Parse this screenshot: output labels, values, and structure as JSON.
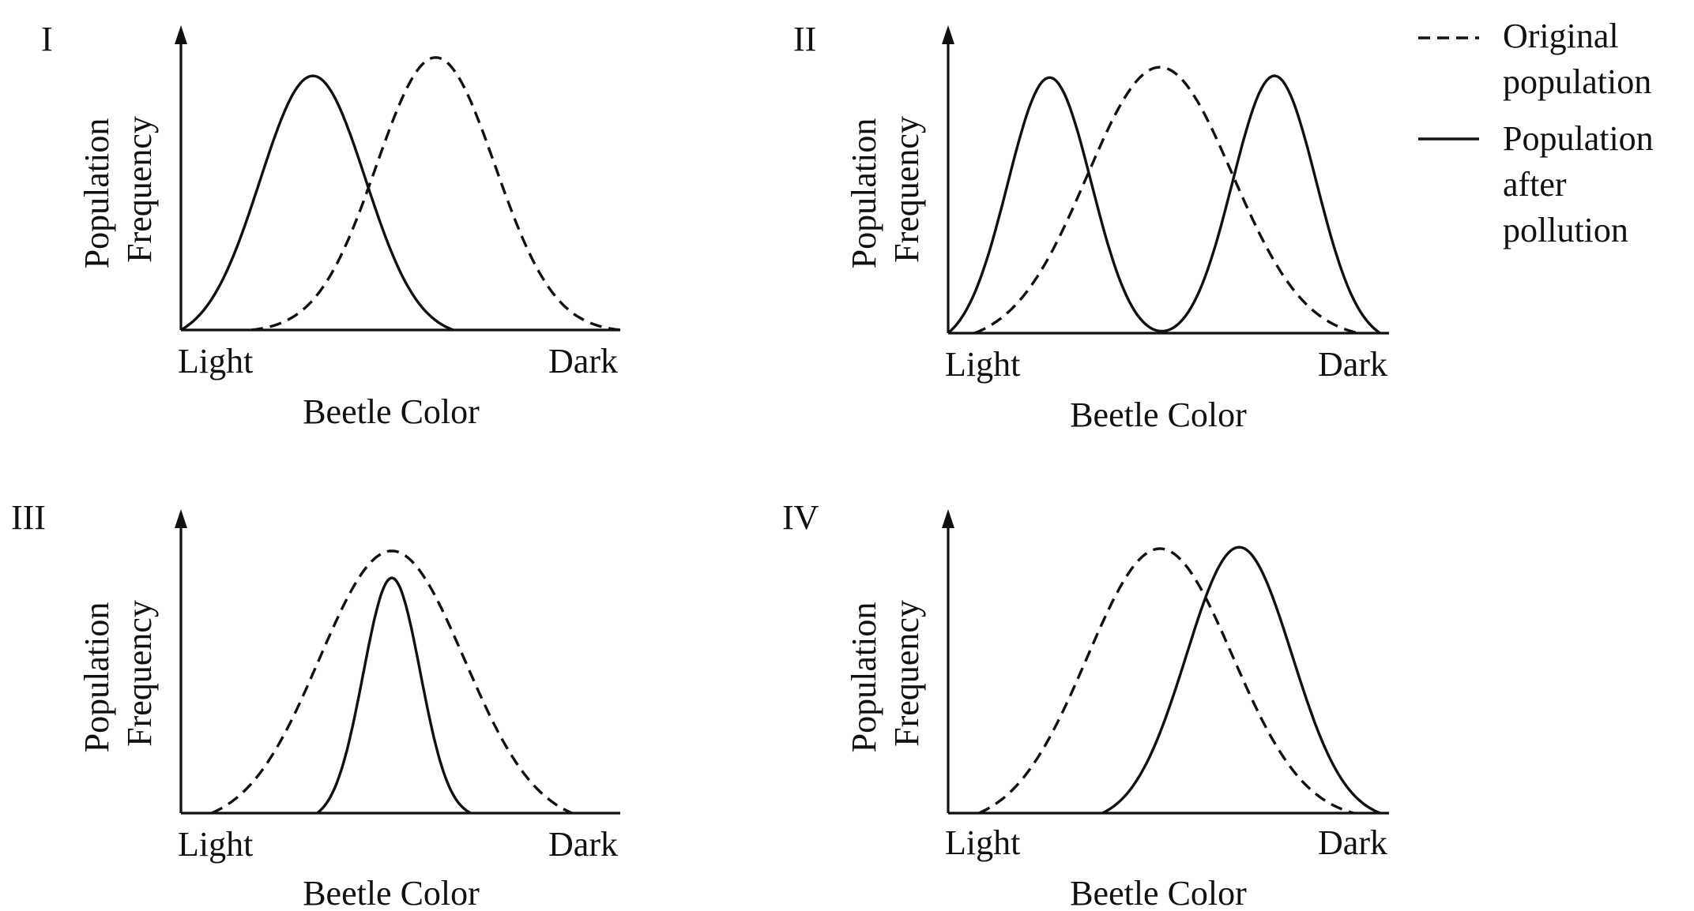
{
  "legend": {
    "original": "Original population",
    "original_lines": [
      "Original",
      "population"
    ],
    "after": "Population after pollution",
    "after_lines": [
      "Population",
      "after",
      "pollution"
    ]
  },
  "chart_data": [
    {
      "type": "line",
      "panel_label": "I",
      "x_tick_labels": [
        "Light",
        "Dark"
      ],
      "xlabel": "Beetle Color",
      "ylabel": "Population Frequency",
      "ylabel_lines": [
        "Population",
        "Frequency"
      ],
      "xlim": [
        0,
        1
      ],
      "ylim": [
        0,
        1.2
      ],
      "series": [
        {
          "name": "Original population",
          "style": "dashed",
          "components": [
            {
              "mu": 0.58,
              "sigma": 0.135,
              "amp": 1.0
            }
          ],
          "support": [
            0.16,
            1.0
          ]
        },
        {
          "name": "Population after pollution",
          "style": "solid",
          "components": [
            {
              "mu": 0.3,
              "sigma": 0.12,
              "amp": 0.96
            }
          ],
          "support": [
            0.0,
            0.62
          ]
        }
      ]
    },
    {
      "type": "line",
      "panel_label": "II",
      "x_tick_labels": [
        "Light",
        "Dark"
      ],
      "xlabel": "Beetle Color",
      "ylabel": "Population Frequency",
      "ylabel_lines": [
        "Population",
        "Frequency"
      ],
      "xlim": [
        0,
        1
      ],
      "ylim": [
        0,
        1.2
      ],
      "series": [
        {
          "name": "Original population",
          "style": "dashed",
          "components": [
            {
              "mu": 0.48,
              "sigma": 0.165,
              "amp": 1.0
            }
          ],
          "support": [
            0.06,
            0.93
          ]
        },
        {
          "name": "Population after pollution",
          "style": "solid",
          "components": [
            {
              "mu": 0.23,
              "sigma": 0.095,
              "amp": 0.98
            },
            {
              "mu": 0.74,
              "sigma": 0.095,
              "amp": 0.98
            }
          ],
          "support": [
            0.0,
            0.98
          ]
        }
      ]
    },
    {
      "type": "line",
      "panel_label": "III",
      "x_tick_labels": [
        "Light",
        "Dark"
      ],
      "xlabel": "Beetle Color",
      "ylabel": "Population Frequency",
      "ylabel_lines": [
        "Population",
        "Frequency"
      ],
      "xlim": [
        0,
        1
      ],
      "ylim": [
        0,
        1.2
      ],
      "series": [
        {
          "name": "Original population",
          "style": "dashed",
          "components": [
            {
              "mu": 0.48,
              "sigma": 0.165,
              "amp": 1.0
            }
          ],
          "support": [
            0.07,
            0.89
          ]
        },
        {
          "name": "Population after pollution",
          "style": "solid",
          "components": [
            {
              "mu": 0.48,
              "sigma": 0.065,
              "amp": 0.88
            }
          ],
          "support": [
            0.31,
            0.66
          ]
        }
      ]
    },
    {
      "type": "line",
      "panel_label": "IV",
      "x_tick_labels": [
        "Light",
        "Dark"
      ],
      "xlabel": "Beetle Color",
      "ylabel": "Population Frequency",
      "ylabel_lines": [
        "Population",
        "Frequency"
      ],
      "xlim": [
        0,
        1
      ],
      "ylim": [
        0,
        1.2
      ],
      "series": [
        {
          "name": "Original population",
          "style": "dashed",
          "components": [
            {
              "mu": 0.48,
              "sigma": 0.165,
              "amp": 1.0
            }
          ],
          "support": [
            0.07,
            0.92
          ]
        },
        {
          "name": "Population after pollution",
          "style": "solid",
          "components": [
            {
              "mu": 0.66,
              "sigma": 0.12,
              "amp": 1.0
            }
          ],
          "support": [
            0.35,
            0.98
          ]
        }
      ]
    }
  ]
}
